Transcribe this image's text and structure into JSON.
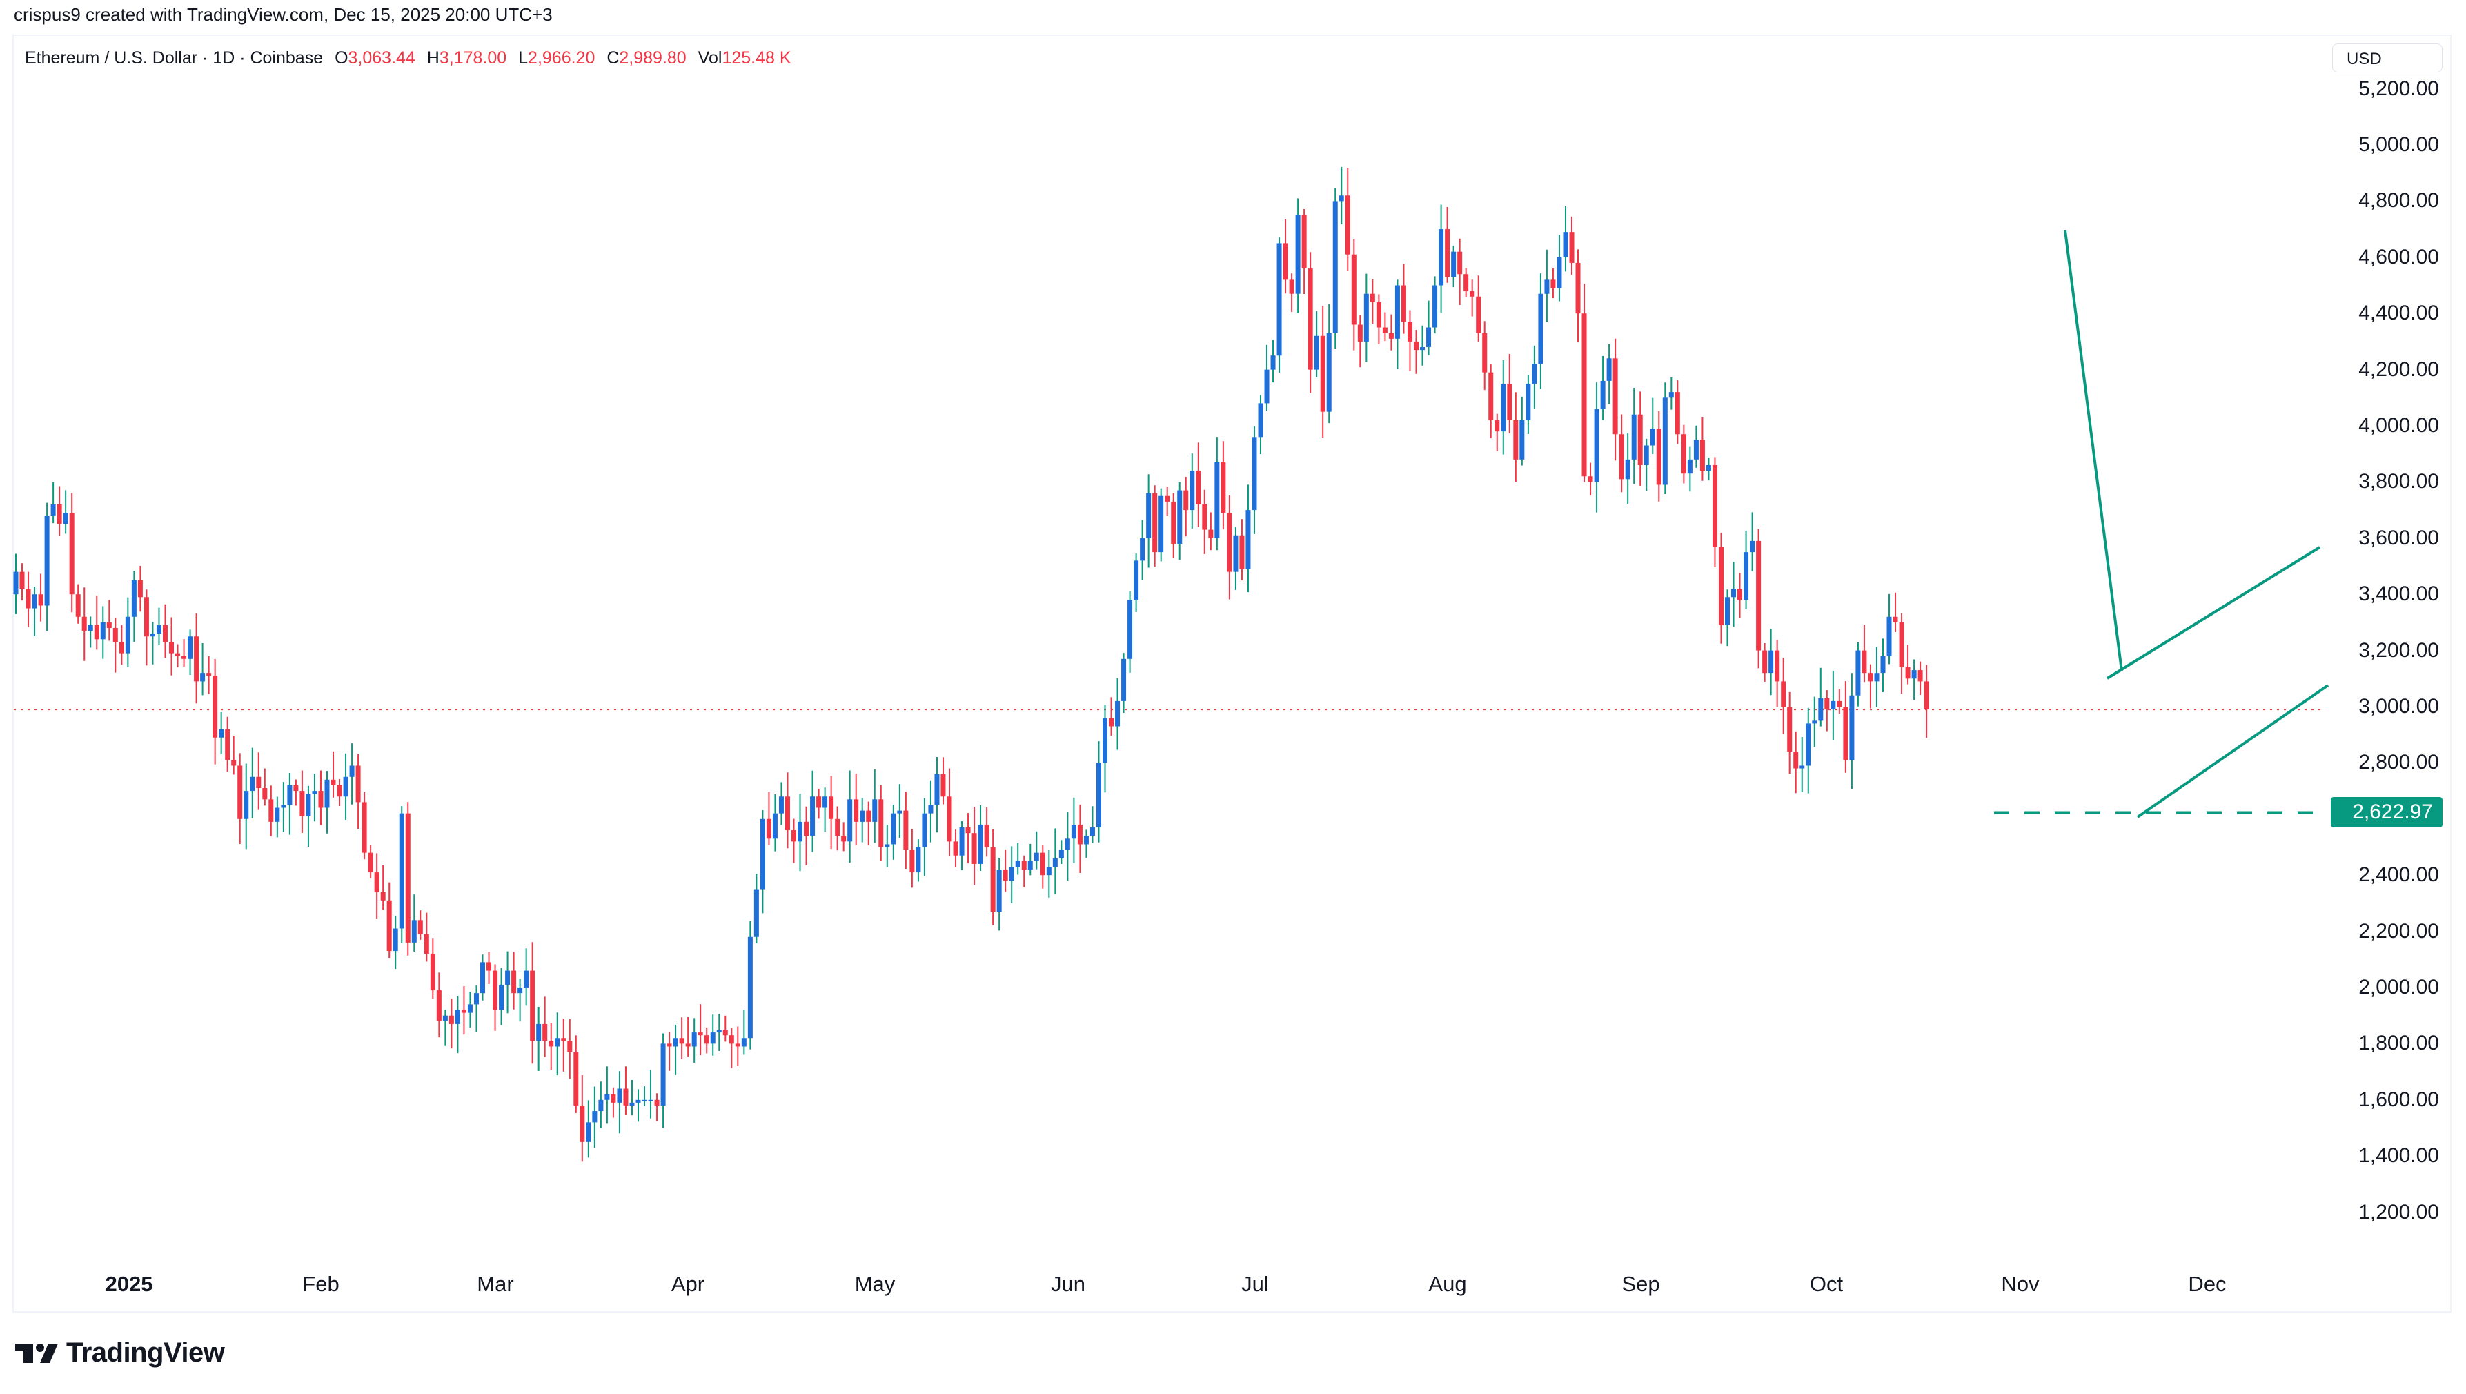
{
  "credit": "crispus9 created with TradingView.com, Dec 15, 2025 20:00 UTC+3",
  "legend": {
    "symbol": "Ethereum / U.S. Dollar · 1D · Coinbase",
    "open_label": "O",
    "open": "3,063.44",
    "high_label": "H",
    "high": "3,178.00",
    "low_label": "L",
    "low": "2,966.20",
    "close_label": "C",
    "close": "2,989.80",
    "vol_label": "Vol",
    "vol": "125.48 K"
  },
  "axis": {
    "currency": "USD",
    "price_tag": "2,622.97",
    "y_ticks": [
      "5,200.00",
      "5,000.00",
      "4,800.00",
      "4,600.00",
      "4,400.00",
      "4,200.00",
      "4,000.00",
      "3,800.00",
      "3,600.00",
      "3,400.00",
      "3,200.00",
      "3,000.00",
      "2,800.00",
      "2,400.00",
      "2,200.00",
      "2,000.00",
      "1,800.00",
      "1,600.00",
      "1,400.00",
      "1,200.00"
    ],
    "x_ticks": [
      "2025",
      "Feb",
      "Mar",
      "Apr",
      "May",
      "Jun",
      "Jul",
      "Aug",
      "Sep",
      "Oct",
      "Nov",
      "Dec"
    ]
  },
  "colors": {
    "up_body": "#1e6fd9",
    "up_wick": "#089981",
    "down": "#f23645",
    "drawing": "#089981",
    "last_price_line": "#f23645"
  },
  "branding": {
    "logo_text": "TradingView"
  },
  "chart_data": {
    "type": "candlestick",
    "title": "Ethereum / U.S. Dollar · 1D · Coinbase",
    "xlabel": "",
    "ylabel": "USD",
    "ylim": [
      1100,
      5250
    ],
    "x_ticks": [
      "2025",
      "Feb",
      "Mar",
      "Apr",
      "May",
      "Jun",
      "Jul",
      "Aug",
      "Sep",
      "Oct",
      "Nov",
      "Dec"
    ],
    "last_close": 2989.8,
    "horizontal_level": 2622.97,
    "start_date": "2024-12-25",
    "closes": [
      3480,
      3420,
      3350,
      3400,
      3360,
      3680,
      3720,
      3650,
      3690,
      3400,
      3320,
      3270,
      3290,
      3240,
      3300,
      3280,
      3230,
      3190,
      3320,
      3450,
      3390,
      3250,
      3260,
      3290,
      3230,
      3190,
      3180,
      3170,
      3250,
      3090,
      3120,
      3110,
      2890,
      2920,
      2810,
      2790,
      2600,
      2700,
      2750,
      2710,
      2670,
      2590,
      2640,
      2650,
      2720,
      2700,
      2610,
      2690,
      2700,
      2640,
      2740,
      2720,
      2680,
      2750,
      2790,
      2660,
      2480,
      2410,
      2340,
      2310,
      2130,
      2210,
      2620,
      2160,
      2240,
      2190,
      2120,
      1990,
      1880,
      1900,
      1870,
      1920,
      1910,
      1940,
      1980,
      2090,
      2060,
      1920,
      2010,
      2060,
      1980,
      2000,
      2060,
      1810,
      1870,
      1810,
      1790,
      1820,
      1810,
      1770,
      1580,
      1450,
      1520,
      1560,
      1600,
      1620,
      1590,
      1640,
      1580,
      1590,
      1600,
      1600,
      1600,
      1580,
      1800,
      1790,
      1820,
      1800,
      1790,
      1840,
      1830,
      1800,
      1840,
      1850,
      1830,
      1800,
      1790,
      1820,
      2180,
      2350,
      2600,
      2530,
      2620,
      2680,
      2560,
      2520,
      2590,
      2540,
      2680,
      2640,
      2680,
      2600,
      2540,
      2520,
      2670,
      2590,
      2630,
      2590,
      2670,
      2500,
      2510,
      2620,
      2630,
      2490,
      2410,
      2500,
      2620,
      2650,
      2760,
      2680,
      2520,
      2470,
      2570,
      2550,
      2440,
      2580,
      2500,
      2270,
      2420,
      2380,
      2430,
      2450,
      2420,
      2450,
      2480,
      2400,
      2430,
      2460,
      2490,
      2530,
      2580,
      2510,
      2540,
      2570,
      2800,
      2960,
      2930,
      3020,
      3170,
      3380,
      3520,
      3600,
      3760,
      3550,
      3750,
      3730,
      3580,
      3770,
      3700,
      3840,
      3720,
      3630,
      3600,
      3870,
      3690,
      3480,
      3610,
      3490,
      3700,
      3960,
      4080,
      4200,
      4250,
      4650,
      4520,
      4470,
      4750,
      4560,
      4200,
      4320,
      4050,
      4330,
      4800,
      4820,
      4610,
      4360,
      4300,
      4470,
      4440,
      4350,
      4330,
      4310,
      4500,
      4370,
      4300,
      4270,
      4280,
      4350,
      4500,
      4700,
      4530,
      4620,
      4540,
      4480,
      4460,
      4330,
      4190,
      4020,
      3980,
      4150,
      4020,
      3880,
      4020,
      4150,
      4220,
      4470,
      4520,
      4490,
      4600,
      4690,
      4580,
      4400,
      3820,
      3800,
      4060,
      4160,
      4240,
      3970,
      3810,
      3880,
      4040,
      3860,
      3930,
      3990,
      3790,
      4100,
      4120,
      3970,
      3830,
      3880,
      3950,
      3840,
      3860,
      3570,
      3290,
      3390,
      3420,
      3380,
      3550,
      3590,
      3200,
      3120,
      3200,
      3090,
      3000,
      2840,
      2780,
      2790,
      2940,
      2950,
      3030,
      2990,
      3020,
      3000,
      2810,
      3040,
      3200,
      3120,
      3090,
      3120,
      3180,
      3320,
      3300,
      3140,
      3100,
      3130,
      3090,
      2990
    ],
    "notes": "Approximate daily closes read from chart; includes a falling trendline, an ascending channel (rising wedge) and a dashed horizontal support at 2,622.97"
  }
}
